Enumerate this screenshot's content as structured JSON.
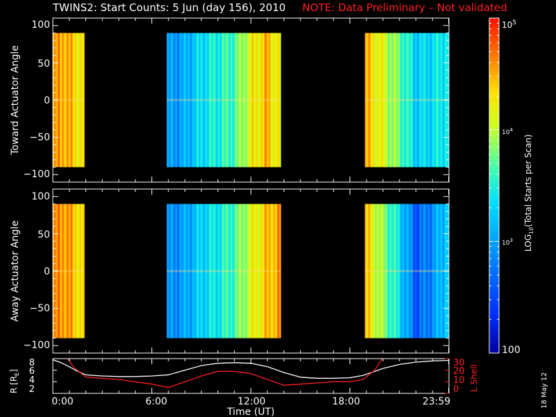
{
  "title": {
    "main": "TWINS2: Start Counts:  5 Jun (day 156), 2010",
    "note": "NOTE: Data Preliminary – Not validated"
  },
  "side_stamp": "18 May 12",
  "colors": {
    "background": "#000000",
    "axes": "#ffffff",
    "note": "#ff2020",
    "lshell": "#ff2020"
  },
  "chart_data": [
    {
      "type": "heatmap",
      "panel": "toward",
      "ylabel": "Toward Actuator Angle",
      "ylim": [
        -110,
        110
      ],
      "yticks": [
        "100",
        "50",
        "0",
        "−50",
        "−100"
      ],
      "x_range_hours": [
        0,
        24
      ],
      "data_angle_range": [
        -90,
        90
      ],
      "coverage_hours": [
        [
          0.0,
          1.9
        ],
        [
          6.9,
          13.8
        ],
        [
          18.9,
          23.98
        ]
      ],
      "column_colormap_positions": [
        [
          0.0,
          0.8
        ],
        [
          0.6,
          0.86
        ],
        [
          1.1,
          0.8
        ],
        [
          1.8,
          0.75
        ],
        [
          6.9,
          0.3
        ],
        [
          8.0,
          0.35
        ],
        [
          9.0,
          0.45
        ],
        [
          10.0,
          0.5
        ],
        [
          11.0,
          0.55
        ],
        [
          12.0,
          0.72
        ],
        [
          13.0,
          0.82
        ],
        [
          13.8,
          0.7
        ],
        [
          18.9,
          0.82
        ],
        [
          20.0,
          0.7
        ],
        [
          21.0,
          0.58
        ],
        [
          22.0,
          0.42
        ],
        [
          23.0,
          0.45
        ],
        [
          23.98,
          0.5
        ]
      ]
    },
    {
      "type": "heatmap",
      "panel": "away",
      "ylabel": "Away Actuator Angle",
      "ylim": [
        -110,
        110
      ],
      "yticks": [
        "100",
        "50",
        "0",
        "−50",
        "−100"
      ],
      "x_range_hours": [
        0,
        24
      ],
      "data_angle_range": [
        -90,
        90
      ],
      "coverage_hours": [
        [
          0.0,
          1.9
        ],
        [
          6.9,
          13.8
        ],
        [
          18.9,
          23.98
        ]
      ],
      "column_colormap_positions": [
        [
          0.0,
          0.82
        ],
        [
          0.6,
          0.88
        ],
        [
          1.1,
          0.82
        ],
        [
          1.8,
          0.76
        ],
        [
          6.9,
          0.28
        ],
        [
          8.0,
          0.33
        ],
        [
          9.0,
          0.43
        ],
        [
          10.0,
          0.48
        ],
        [
          11.0,
          0.55
        ],
        [
          12.0,
          0.7
        ],
        [
          13.0,
          0.8
        ],
        [
          13.8,
          0.85
        ],
        [
          18.9,
          0.8
        ],
        [
          20.0,
          0.62
        ],
        [
          21.0,
          0.45
        ],
        [
          22.0,
          0.2
        ],
        [
          23.0,
          0.3
        ],
        [
          23.98,
          0.45
        ]
      ]
    },
    {
      "type": "line",
      "panel": "orbit",
      "ylabel_left": "R [R",
      "ylabel_left_sub": "E",
      "ylabel_left_end": "]",
      "ylabel_right": "L Shell",
      "ylim_left": [
        2,
        8
      ],
      "ylim_right": [
        0,
        30
      ],
      "yticks_left": [
        "8",
        "6",
        "4",
        "2"
      ],
      "yticks_right": [
        "30",
        "20",
        "10",
        "0"
      ],
      "xlabel": "Time (UT)",
      "xticks": [
        "0:00",
        "6:00",
        "12:00",
        "18:00",
        "23:59"
      ],
      "x_range_hours": [
        0,
        24
      ],
      "series": [
        {
          "color": "#ffffff",
          "x": [
            0,
            0.5,
            1,
            1.5,
            2,
            3,
            4,
            5,
            6,
            7,
            8,
            9,
            10,
            11,
            12,
            13,
            14,
            15,
            16,
            17,
            18,
            18.8,
            19.5,
            20,
            21,
            22,
            23,
            24
          ],
          "y": [
            7.8,
            7.3,
            6.6,
            5.8,
            5.2,
            5.0,
            4.9,
            4.9,
            5.0,
            5.2,
            6.0,
            6.8,
            7.2,
            7.3,
            7.2,
            6.6,
            5.6,
            4.8,
            4.6,
            4.6,
            4.7,
            5.1,
            5.8,
            6.3,
            7.0,
            7.4,
            7.6,
            7.7
          ]
        },
        {
          "color": "#ff2020",
          "x": [
            0.9,
            1.3,
            2,
            3,
            4,
            5,
            6,
            7,
            8,
            9,
            10,
            11,
            12,
            13,
            14,
            15,
            16,
            17,
            18,
            18.8,
            19.5,
            20
          ],
          "y": [
            30,
            22,
            14,
            13,
            12,
            10,
            8,
            5,
            10,
            15,
            19,
            19,
            17,
            12,
            7,
            8,
            9,
            10,
            10,
            12,
            20,
            31
          ]
        }
      ]
    }
  ],
  "colorbar": {
    "label_pre": "LOG",
    "label_sub": "10",
    "label_post": "(Total Starts per Scan)",
    "scale": "log",
    "range": [
      100,
      100000
    ],
    "ticks": [
      {
        "value": 100000,
        "base": "10",
        "exp": "5"
      },
      {
        "value": 10000,
        "base": "10",
        "exp": "4"
      },
      {
        "value": 1000,
        "base": "10",
        "exp": "3"
      },
      {
        "value": 100,
        "text": "100"
      }
    ]
  }
}
